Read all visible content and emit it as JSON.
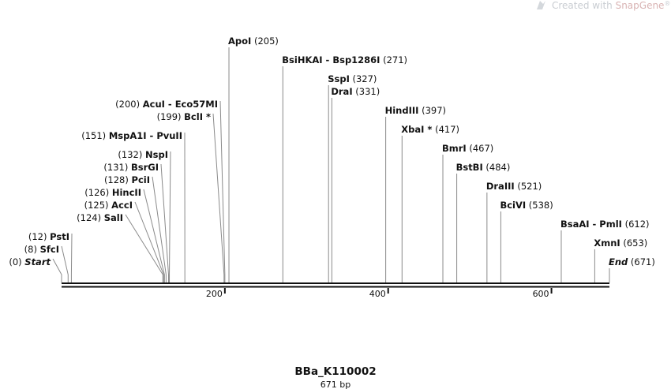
{
  "watermark": {
    "prefix": "Created with ",
    "brand": "SnapGene",
    "mark": "®",
    "icon": "snapgene-logo-icon"
  },
  "sequence": {
    "name": "BBa_K110002",
    "length_label": "671 bp",
    "length_bp": 671
  },
  "axis": {
    "ticks": [
      {
        "value": 200,
        "label": "200"
      },
      {
        "value": 400,
        "label": "400"
      },
      {
        "value": 600,
        "label": "600"
      }
    ]
  },
  "features": [
    {
      "id": "start",
      "name": "Start",
      "pos": 0,
      "pos_label": "(0)",
      "side": "left",
      "italic": true
    },
    {
      "id": "sfci",
      "name": "SfcI",
      "pos": 8,
      "pos_label": "(8)",
      "side": "left"
    },
    {
      "id": "psti",
      "name": "PstI",
      "pos": 12,
      "pos_label": "(12)",
      "side": "left"
    },
    {
      "id": "sali",
      "name": "SalI",
      "pos": 124,
      "pos_label": "(124)",
      "side": "left"
    },
    {
      "id": "acci",
      "name": "AccI",
      "pos": 125,
      "pos_label": "(125)",
      "side": "left"
    },
    {
      "id": "hincii",
      "name": "HincII",
      "pos": 126,
      "pos_label": "(126)",
      "side": "left"
    },
    {
      "id": "pcii",
      "name": "PciI",
      "pos": 128,
      "pos_label": "(128)",
      "side": "left"
    },
    {
      "id": "bsrgi",
      "name": "BsrGI",
      "pos": 131,
      "pos_label": "(131)",
      "side": "left"
    },
    {
      "id": "nspi",
      "name": "NspI",
      "pos": 132,
      "pos_label": "(132)",
      "side": "left"
    },
    {
      "id": "mspa1i",
      "name": "MspA1I - PvuII",
      "pos": 151,
      "pos_label": "(151)",
      "side": "left"
    },
    {
      "id": "bcli",
      "name": "BclI *",
      "pos": 199,
      "pos_label": "(199)",
      "side": "left"
    },
    {
      "id": "acui",
      "name": "AcuI  - Eco57MI",
      "pos": 200,
      "pos_label": "(200)",
      "side": "left"
    },
    {
      "id": "apoi",
      "name": "ApoI",
      "pos": 205,
      "pos_label": "(205)",
      "side": "right"
    },
    {
      "id": "bsihkai",
      "name": "BsiHKAI - Bsp1286I",
      "pos": 271,
      "pos_label": "(271)",
      "side": "right"
    },
    {
      "id": "sspi",
      "name": "SspI",
      "pos": 327,
      "pos_label": "(327)",
      "side": "right"
    },
    {
      "id": "drai",
      "name": "DraI",
      "pos": 331,
      "pos_label": "(331)",
      "side": "right"
    },
    {
      "id": "hindiii",
      "name": "HindIII",
      "pos": 397,
      "pos_label": "(397)",
      "side": "right"
    },
    {
      "id": "xbai",
      "name": "XbaI *",
      "pos": 417,
      "pos_label": "(417)",
      "side": "right"
    },
    {
      "id": "bmri",
      "name": "BmrI",
      "pos": 467,
      "pos_label": "(467)",
      "side": "right"
    },
    {
      "id": "bstbi",
      "name": "BstBI",
      "pos": 484,
      "pos_label": "(484)",
      "side": "right"
    },
    {
      "id": "draiii",
      "name": "DraIII",
      "pos": 521,
      "pos_label": "(521)",
      "side": "right"
    },
    {
      "id": "bcivi",
      "name": "BciVI",
      "pos": 538,
      "pos_label": "(538)",
      "side": "right"
    },
    {
      "id": "bsaai",
      "name": "BsaAI - PmlI",
      "pos": 612,
      "pos_label": "(612)",
      "side": "right"
    },
    {
      "id": "xmni",
      "name": "XmnI",
      "pos": 653,
      "pos_label": "(653)",
      "side": "right"
    },
    {
      "id": "end",
      "name": "End",
      "pos": 671,
      "pos_label": "(671)",
      "side": "right",
      "italic": true
    }
  ]
}
